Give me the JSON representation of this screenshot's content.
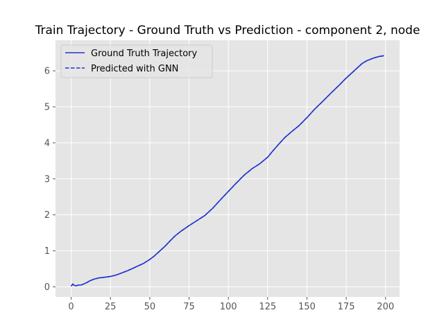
{
  "chart_data": {
    "type": "line",
    "title": "Train Trajectory - Ground Truth vs Prediction - component 2, node",
    "xlabel": "",
    "ylabel": "",
    "xlim": [
      -9.95,
      208.95
    ],
    "ylim": [
      -0.28,
      6.85
    ],
    "xticks": [
      0,
      25,
      50,
      75,
      100,
      125,
      150,
      175,
      200
    ],
    "yticks": [
      0,
      1,
      2,
      3,
      4,
      5,
      6
    ],
    "grid": true,
    "background": "#e5e5e5",
    "legend_position": "top-left",
    "series": [
      {
        "name": "Ground Truth Trajectory",
        "style": "solid",
        "color": "#2233cc",
        "x": [
          0,
          1,
          2,
          3,
          4,
          5,
          6,
          7,
          8,
          10,
          12,
          15,
          18,
          20,
          22,
          25,
          28,
          30,
          33,
          36,
          40,
          43,
          46,
          50,
          53,
          56,
          60,
          63,
          66,
          70,
          75,
          80,
          85,
          90,
          95,
          100,
          105,
          110,
          115,
          120,
          125,
          128,
          132,
          136,
          140,
          145,
          150,
          155,
          160,
          165,
          170,
          175,
          180,
          185,
          188,
          192,
          196,
          199
        ],
        "y": [
          0.02,
          0.08,
          0.04,
          0.03,
          0.04,
          0.05,
          0.05,
          0.06,
          0.08,
          0.12,
          0.17,
          0.22,
          0.25,
          0.26,
          0.27,
          0.29,
          0.32,
          0.35,
          0.4,
          0.45,
          0.53,
          0.59,
          0.65,
          0.76,
          0.86,
          0.98,
          1.14,
          1.28,
          1.41,
          1.55,
          1.7,
          1.84,
          1.98,
          2.18,
          2.42,
          2.65,
          2.88,
          3.1,
          3.28,
          3.42,
          3.6,
          3.76,
          3.96,
          4.15,
          4.3,
          4.48,
          4.7,
          4.94,
          5.15,
          5.37,
          5.58,
          5.8,
          6.0,
          6.2,
          6.28,
          6.35,
          6.4,
          6.42
        ]
      },
      {
        "name": "Predicted with GNN",
        "style": "dashed",
        "color": "#2233cc",
        "x": [
          0,
          1,
          2,
          3,
          4,
          5,
          6,
          7,
          8,
          10,
          12,
          15,
          18,
          20,
          22,
          25,
          28,
          30,
          33,
          36,
          40,
          43,
          46,
          50,
          53,
          56,
          60,
          63,
          66,
          70,
          75,
          80,
          85,
          90,
          95,
          100,
          105,
          110,
          115,
          120,
          125,
          128,
          132,
          136,
          140,
          145,
          150,
          155,
          160,
          165,
          170,
          175,
          180,
          185,
          188,
          192,
          196,
          199
        ],
        "y": [
          0.02,
          0.07,
          0.04,
          0.03,
          0.04,
          0.05,
          0.05,
          0.06,
          0.08,
          0.12,
          0.17,
          0.22,
          0.25,
          0.26,
          0.27,
          0.29,
          0.32,
          0.35,
          0.4,
          0.45,
          0.53,
          0.59,
          0.65,
          0.76,
          0.86,
          0.98,
          1.14,
          1.28,
          1.41,
          1.55,
          1.7,
          1.84,
          1.98,
          2.18,
          2.42,
          2.65,
          2.88,
          3.1,
          3.28,
          3.42,
          3.6,
          3.76,
          3.96,
          4.15,
          4.3,
          4.48,
          4.7,
          4.94,
          5.15,
          5.37,
          5.58,
          5.8,
          6.0,
          6.2,
          6.28,
          6.35,
          6.4,
          6.42
        ]
      }
    ]
  }
}
